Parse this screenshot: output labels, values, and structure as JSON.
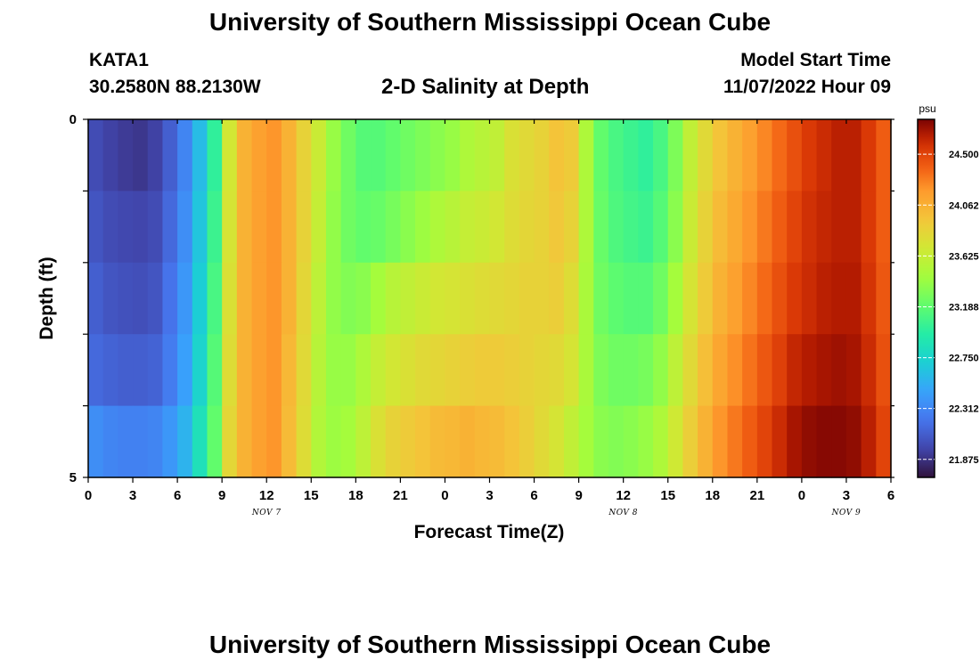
{
  "header": {
    "title": "University of Southern Mississippi Ocean Cube",
    "station": "KATA1",
    "coords": "30.2580N  88.2130W",
    "subtitle": "2-D Salinity at Depth",
    "model_start_label": "Model Start Time",
    "model_start_value": "11/07/2022 Hour 09"
  },
  "footer": {
    "title": "University of Southern Mississippi Ocean Cube"
  },
  "chart_data": {
    "type": "heatmap",
    "title": "2-D Salinity at Depth",
    "xlabel": "Forecast Time(Z)",
    "ylabel": "Depth (ft)",
    "x_tick_labels": [
      "0",
      "3",
      "6",
      "9",
      "12",
      "15",
      "18",
      "21",
      "0",
      "3",
      "6",
      "9",
      "12",
      "15",
      "18",
      "21",
      "0",
      "3",
      "6"
    ],
    "x_range_hours": [
      0,
      54
    ],
    "day_labels": [
      {
        "label": "NOV 7",
        "hour": 12
      },
      {
        "label": "NOV 8",
        "hour": 36
      },
      {
        "label": "NOV 9",
        "hour": 51
      }
    ],
    "y_tick_labels": [
      "0",
      "5"
    ],
    "y_range_ft": [
      0,
      5
    ],
    "depth_levels_ft": [
      0,
      1,
      2,
      3,
      4,
      5
    ],
    "hours": [
      0,
      1,
      2,
      3,
      4,
      5,
      6,
      7,
      8,
      9,
      10,
      11,
      12,
      13,
      14,
      15,
      16,
      17,
      18,
      19,
      20,
      21,
      22,
      23,
      24,
      25,
      26,
      27,
      28,
      29,
      30,
      31,
      32,
      33,
      34,
      35,
      36,
      37,
      38,
      39,
      40,
      41,
      42,
      43,
      44,
      45,
      46,
      47,
      48,
      49,
      50,
      51,
      52,
      53,
      54
    ],
    "values_by_depth": [
      [
        22.0,
        21.95,
        21.92,
        21.9,
        21.95,
        22.1,
        22.3,
        22.6,
        23.0,
        23.7,
        24.05,
        24.15,
        24.2,
        24.05,
        23.85,
        23.65,
        23.4,
        23.25,
        23.15,
        23.15,
        23.2,
        23.25,
        23.3,
        23.35,
        23.4,
        23.5,
        23.55,
        23.6,
        23.75,
        23.8,
        23.85,
        23.95,
        23.9,
        23.5,
        23.2,
        23.1,
        23.05,
        23.0,
        23.1,
        23.3,
        23.6,
        23.8,
        23.95,
        24.05,
        24.15,
        24.25,
        24.35,
        24.45,
        24.55,
        24.6,
        24.65,
        24.65,
        24.55,
        24.4,
        24.1
      ],
      [
        22.05,
        22.0,
        21.98,
        21.97,
        22.0,
        22.15,
        22.35,
        22.65,
        23.05,
        23.72,
        24.05,
        24.15,
        24.2,
        24.05,
        23.85,
        23.62,
        23.38,
        23.25,
        23.2,
        23.22,
        23.28,
        23.35,
        23.42,
        23.5,
        23.55,
        23.62,
        23.65,
        23.7,
        23.78,
        23.82,
        23.85,
        23.92,
        23.85,
        23.5,
        23.22,
        23.12,
        23.08,
        23.05,
        23.15,
        23.35,
        23.65,
        23.85,
        24.0,
        24.1,
        24.2,
        24.3,
        24.4,
        24.5,
        24.58,
        24.62,
        24.65,
        24.65,
        24.55,
        24.4,
        24.1
      ],
      [
        22.1,
        22.05,
        22.03,
        22.02,
        22.05,
        22.2,
        22.4,
        22.7,
        23.1,
        23.75,
        24.05,
        24.15,
        24.2,
        24.05,
        23.82,
        23.58,
        23.38,
        23.32,
        23.35,
        23.45,
        23.55,
        23.6,
        23.65,
        23.7,
        23.72,
        23.75,
        23.78,
        23.8,
        23.82,
        23.85,
        23.85,
        23.88,
        23.78,
        23.48,
        23.25,
        23.18,
        23.15,
        23.15,
        23.25,
        23.45,
        23.72,
        23.9,
        24.05,
        24.15,
        24.25,
        24.35,
        24.45,
        24.55,
        24.6,
        24.65,
        24.67,
        24.67,
        24.57,
        24.42,
        24.1
      ],
      [
        22.15,
        22.12,
        22.1,
        22.1,
        22.12,
        22.25,
        22.45,
        22.75,
        23.15,
        23.78,
        24.05,
        24.15,
        24.2,
        24.02,
        23.8,
        23.55,
        23.4,
        23.4,
        23.5,
        23.62,
        23.7,
        23.75,
        23.8,
        23.82,
        23.85,
        23.88,
        23.9,
        23.9,
        23.88,
        23.85,
        23.82,
        23.8,
        23.72,
        23.48,
        23.3,
        23.25,
        23.25,
        23.28,
        23.38,
        23.58,
        23.8,
        23.98,
        24.12,
        24.22,
        24.32,
        24.42,
        24.52,
        24.62,
        24.67,
        24.7,
        24.72,
        24.7,
        24.6,
        24.45,
        24.12
      ],
      [
        22.35,
        22.3,
        22.28,
        22.28,
        22.3,
        22.4,
        22.55,
        22.85,
        23.2,
        23.82,
        24.05,
        24.15,
        24.2,
        24.0,
        23.78,
        23.52,
        23.42,
        23.45,
        23.58,
        23.75,
        23.85,
        23.9,
        23.95,
        24.0,
        24.02,
        24.05,
        24.02,
        24.0,
        23.95,
        23.88,
        23.8,
        23.72,
        23.6,
        23.45,
        23.35,
        23.32,
        23.35,
        23.4,
        23.5,
        23.68,
        23.88,
        24.05,
        24.2,
        24.3,
        24.4,
        24.5,
        24.6,
        24.7,
        24.75,
        24.77,
        24.77,
        24.75,
        24.65,
        24.5,
        24.15
      ],
      [
        22.55,
        22.52,
        22.5,
        22.5,
        22.52,
        22.6,
        22.7,
        22.95,
        23.3,
        23.88,
        24.05,
        24.15,
        24.2,
        24.0,
        23.75,
        23.5,
        23.45,
        23.52,
        23.65,
        23.85,
        23.95,
        24.0,
        24.05,
        24.1,
        24.15,
        24.18,
        24.15,
        24.1,
        24.0,
        23.9,
        23.78,
        23.62,
        23.5,
        23.42,
        23.4,
        23.4,
        23.45,
        23.52,
        23.62,
        23.78,
        23.95,
        24.12,
        24.28,
        24.38,
        24.48,
        24.58,
        24.68,
        24.76,
        24.82,
        24.85,
        24.82,
        24.8,
        24.7,
        24.55,
        24.2
      ]
    ],
    "colorbar": {
      "unit": "psu",
      "ticks": [
        "24.500",
        "24.062",
        "23.625",
        "23.188",
        "22.750",
        "22.312",
        "21.875"
      ],
      "tick_values": [
        24.5,
        24.0625,
        23.625,
        23.1875,
        22.75,
        22.3125,
        21.875
      ],
      "range": [
        21.72,
        24.8
      ]
    },
    "grid": false
  }
}
